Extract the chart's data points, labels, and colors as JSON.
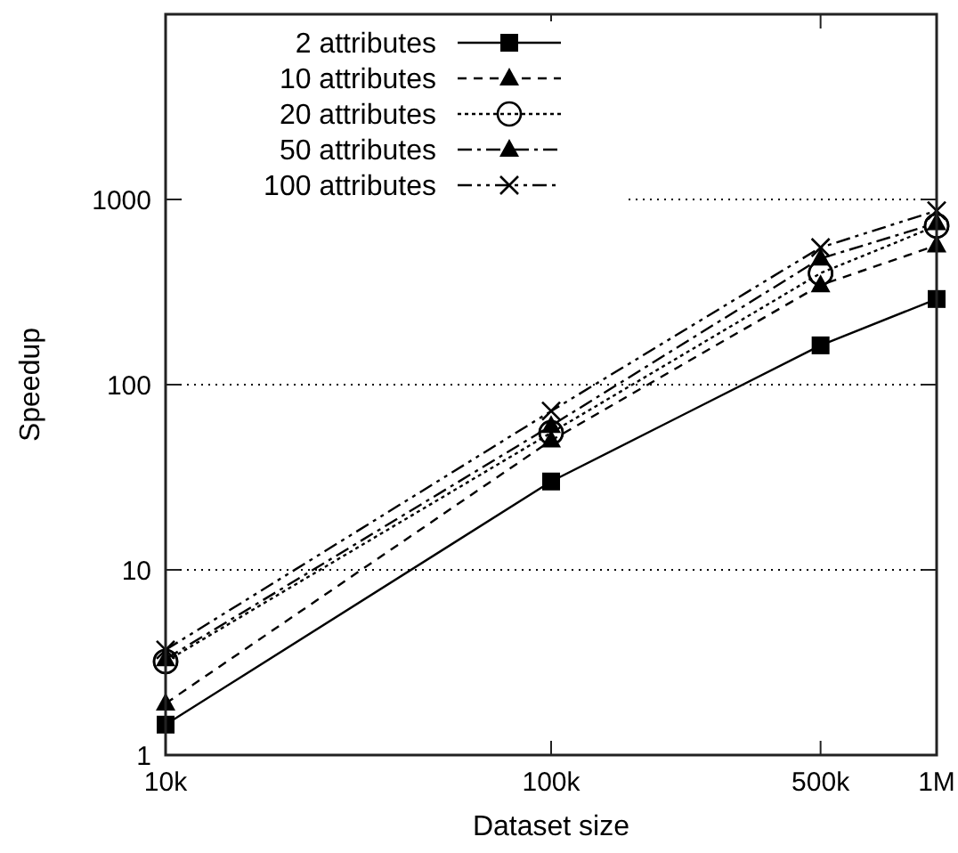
{
  "chart_data": {
    "type": "line",
    "xlabel": "Dataset size",
    "ylabel": "Speedup",
    "log": "xy",
    "x": [
      10000,
      100000,
      500000,
      1000000
    ],
    "xlim": [
      10000,
      1000000
    ],
    "xticks": [
      {
        "value": 10000,
        "label": "10k"
      },
      {
        "value": 100000,
        "label": "100k"
      },
      {
        "value": 500000,
        "label": "500k"
      },
      {
        "value": 1000000,
        "label": "1M"
      }
    ],
    "ylim": [
      1,
      10000
    ],
    "yticks": [
      1,
      10,
      100,
      1000
    ],
    "grid": "y",
    "legend": "top left",
    "series": [
      {
        "name": "2 attributes",
        "color": "#000000",
        "marker": "square",
        "line_style": "solid",
        "values": [
          1.46,
          30,
          163,
          290
        ]
      },
      {
        "name": "10 attributes",
        "color": "#000000",
        "marker": "triangle",
        "line_style": "dashed",
        "values": [
          1.9,
          50,
          345,
          565
        ]
      },
      {
        "name": "20 attributes",
        "color": "#000000",
        "marker": "circle",
        "line_style": "dotted",
        "values": [
          3.2,
          55,
          400,
          720
        ]
      },
      {
        "name": "50 attributes",
        "color": "#000000",
        "marker": "triangle",
        "line_style": "dashdot",
        "values": [
          3.3,
          60,
          480,
          745
        ]
      },
      {
        "name": "100 attributes",
        "color": "#000000",
        "marker": "cross",
        "line_style": "dashdotdot",
        "values": [
          3.7,
          72,
          550,
          870
        ]
      }
    ]
  }
}
